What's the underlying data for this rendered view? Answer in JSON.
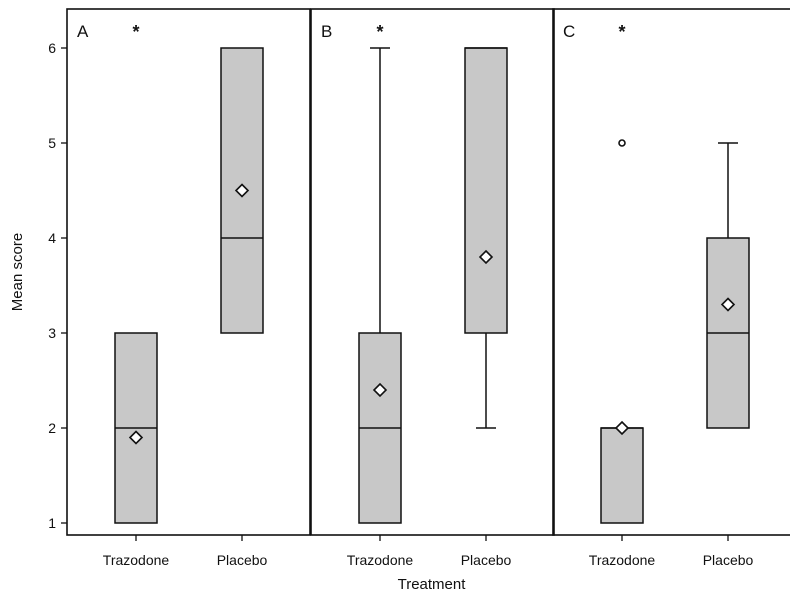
{
  "chart_data": {
    "type": "box",
    "title": "",
    "xlabel": "Treatment",
    "ylabel": "Mean score",
    "ylim": [
      0.85,
      6.35
    ],
    "yticks": [
      1,
      2,
      3,
      4,
      5,
      6
    ],
    "categories": [
      "Trazodone",
      "Placebo"
    ],
    "grid": false,
    "colors": {
      "box_fill": "#c8c8c8",
      "stroke": "#111111",
      "background": "#ffffff"
    },
    "panels": [
      {
        "label": "A",
        "marker": "*",
        "series": [
          {
            "category": "Trazodone",
            "whisker_low": 1,
            "q1": 1,
            "median": 2,
            "q3": 3,
            "whisker_high": 3,
            "mean": 1.9,
            "outliers": []
          },
          {
            "category": "Placebo",
            "whisker_low": 3,
            "q1": 3,
            "median": 4,
            "q3": 6,
            "whisker_high": 6,
            "mean": 4.5,
            "outliers": []
          }
        ]
      },
      {
        "label": "B",
        "marker": "*",
        "series": [
          {
            "category": "Trazodone",
            "whisker_low": 1,
            "q1": 1,
            "median": 2,
            "q3": 3,
            "whisker_high": 6,
            "mean": 2.4,
            "outliers": []
          },
          {
            "category": "Placebo",
            "whisker_low": 2,
            "q1": 3,
            "median": 6,
            "q3": 6,
            "whisker_high": 6,
            "mean": 3.8,
            "outliers": []
          }
        ]
      },
      {
        "label": "C",
        "marker": "*",
        "series": [
          {
            "category": "Trazodone",
            "whisker_low": 1,
            "q1": 1,
            "median": 2,
            "q3": 2,
            "whisker_high": 2,
            "mean": 2,
            "outliers": [
              5
            ]
          },
          {
            "category": "Placebo",
            "whisker_low": 2,
            "q1": 2,
            "median": 3,
            "q3": 4,
            "whisker_high": 5,
            "mean": 3.3,
            "outliers": []
          }
        ]
      }
    ]
  }
}
